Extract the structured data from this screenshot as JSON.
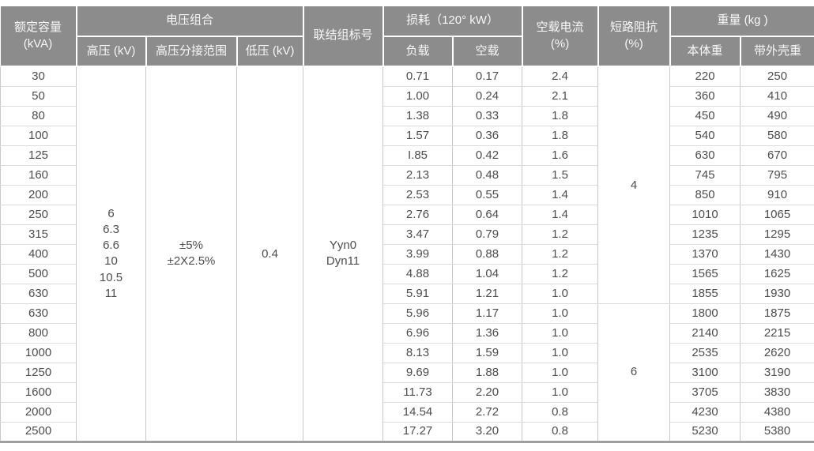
{
  "table": {
    "headers": {
      "rated_capacity_l1": "额定容量",
      "rated_capacity_l2": "(kVA)",
      "voltage_combination": "电压组合",
      "hv": "高压 (kV)",
      "hv_tap_range": "高压分接范围",
      "lv": "低压 (kV)",
      "vector_group": "联结组标号",
      "loss": "损耗（120° kW）",
      "loss_load": "负载",
      "loss_no_load": "空载",
      "no_load_current_l1": "空载电流",
      "no_load_current_l2": "(%)",
      "short_circuit_impedance_l1": "短路阻抗",
      "short_circuit_impedance_l2": "(%)",
      "weight": "重量 (kg )",
      "weight_body": "本体重",
      "weight_with_shell": "带外壳重"
    },
    "merged_cells": {
      "hv_values": [
        "6",
        "6.3",
        "6.6",
        "10",
        "10.5",
        "11"
      ],
      "hv_tap_range_values": [
        "±5%",
        "±2X2.5%"
      ],
      "lv_value": "0.4",
      "vector_group_values": [
        "Yyn0",
        "Dyn11"
      ],
      "impedance_groups": [
        {
          "value": "4",
          "row_span": 12
        },
        {
          "value": "6",
          "row_span": 7
        }
      ]
    },
    "rows": [
      {
        "capacity": "30",
        "load_loss": "0.71",
        "no_load_loss": "0.17",
        "no_load_current": "2.4",
        "body_weight": "220",
        "shell_weight": "250"
      },
      {
        "capacity": "50",
        "load_loss": "1.00",
        "no_load_loss": "0.24",
        "no_load_current": "2.1",
        "body_weight": "360",
        "shell_weight": "410"
      },
      {
        "capacity": "80",
        "load_loss": "1.38",
        "no_load_loss": "0.33",
        "no_load_current": "1.8",
        "body_weight": "450",
        "shell_weight": "490"
      },
      {
        "capacity": "100",
        "load_loss": "1.57",
        "no_load_loss": "0.36",
        "no_load_current": "1.8",
        "body_weight": "540",
        "shell_weight": "580"
      },
      {
        "capacity": "125",
        "load_loss": "I.85",
        "no_load_loss": "0.42",
        "no_load_current": "1.6",
        "body_weight": "630",
        "shell_weight": "670"
      },
      {
        "capacity": "160",
        "load_loss": "2.13",
        "no_load_loss": "0.48",
        "no_load_current": "1.5",
        "body_weight": "745",
        "shell_weight": "795"
      },
      {
        "capacity": "200",
        "load_loss": "2.53",
        "no_load_loss": "0.55",
        "no_load_current": "1.4",
        "body_weight": "850",
        "shell_weight": "910"
      },
      {
        "capacity": "250",
        "load_loss": "2.76",
        "no_load_loss": "0.64",
        "no_load_current": "1.4",
        "body_weight": "1010",
        "shell_weight": "1065"
      },
      {
        "capacity": "315",
        "load_loss": "3.47",
        "no_load_loss": "0.79",
        "no_load_current": "1.2",
        "body_weight": "1235",
        "shell_weight": "1295"
      },
      {
        "capacity": "400",
        "load_loss": "3.99",
        "no_load_loss": "0.88",
        "no_load_current": "1.2",
        "body_weight": "1370",
        "shell_weight": "1430"
      },
      {
        "capacity": "500",
        "load_loss": "4.88",
        "no_load_loss": "1.04",
        "no_load_current": "1.2",
        "body_weight": "1565",
        "shell_weight": "1625"
      },
      {
        "capacity": "630",
        "load_loss": "5.91",
        "no_load_loss": "1.21",
        "no_load_current": "1.0",
        "body_weight": "1855",
        "shell_weight": "1930"
      },
      {
        "capacity": "630",
        "load_loss": "5.96",
        "no_load_loss": "1.17",
        "no_load_current": "1.0",
        "body_weight": "1800",
        "shell_weight": "1875"
      },
      {
        "capacity": "800",
        "load_loss": "6.96",
        "no_load_loss": "1.36",
        "no_load_current": "1.0",
        "body_weight": "2140",
        "shell_weight": "2215"
      },
      {
        "capacity": "1000",
        "load_loss": "8.13",
        "no_load_loss": "1.59",
        "no_load_current": "1.0",
        "body_weight": "2535",
        "shell_weight": "2620"
      },
      {
        "capacity": "1250",
        "load_loss": "9.69",
        "no_load_loss": "1.88",
        "no_load_current": "1.0",
        "body_weight": "3100",
        "shell_weight": "3190"
      },
      {
        "capacity": "1600",
        "load_loss": "11.73",
        "no_load_loss": "2.20",
        "no_load_current": "1.0",
        "body_weight": "3705",
        "shell_weight": "3830"
      },
      {
        "capacity": "2000",
        "load_loss": "14.54",
        "no_load_loss": "2.72",
        "no_load_current": "0.8",
        "body_weight": "4230",
        "shell_weight": "4380"
      },
      {
        "capacity": "2500",
        "load_loss": "17.27",
        "no_load_loss": "3.20",
        "no_load_current": "0.8",
        "body_weight": "5230",
        "shell_weight": "5380"
      }
    ],
    "colors": {
      "header_bg": "#8c8c8c",
      "header_text": "#f7f7f7",
      "body_text": "#4d4d4d",
      "grid_vertical": "#c9c9c9",
      "grid_horizontal": "#dcdcdc",
      "bottom_border": "#9e9e9e"
    }
  }
}
